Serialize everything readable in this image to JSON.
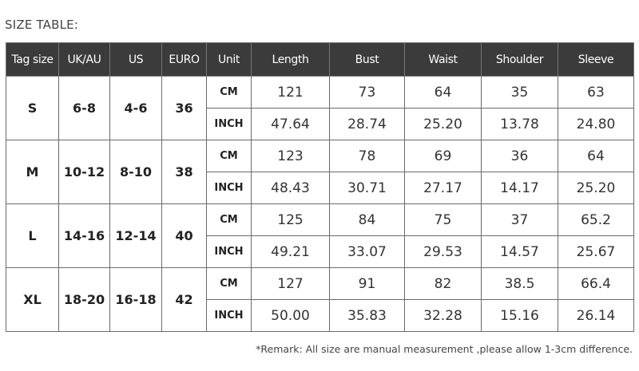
{
  "title": "SIZE TABLE:",
  "headers": [
    "Tag size",
    "UK/AU",
    "US",
    "EURO",
    "Unit",
    "Length",
    "Bust",
    "Waist",
    "Shoulder",
    "Sleeve"
  ],
  "sizes": [
    {
      "tag": "S",
      "uk_au": "6-8",
      "us": "4-6",
      "euro": "36",
      "rows": [
        {
          "unit": "CM",
          "values": [
            "121",
            "73",
            "64",
            "35",
            "63"
          ]
        },
        {
          "unit": "INCH",
          "values": [
            "47.64",
            "28.74",
            "25.20",
            "13.78",
            "24.80"
          ]
        }
      ]
    },
    {
      "tag": "M",
      "uk_au": "10-12",
      "us": "8-10",
      "euro": "38",
      "rows": [
        {
          "unit": "CM",
          "values": [
            "123",
            "78",
            "69",
            "36",
            "64"
          ]
        },
        {
          "unit": "INCH",
          "values": [
            "48.43",
            "30.71",
            "27.17",
            "14.17",
            "25.20"
          ]
        }
      ]
    },
    {
      "tag": "L",
      "uk_au": "14-16",
      "us": "12-14",
      "euro": "40",
      "rows": [
        {
          "unit": "CM",
          "values": [
            "125",
            "84",
            "75",
            "37",
            "65.2"
          ]
        },
        {
          "unit": "INCH",
          "values": [
            "49.21",
            "33.07",
            "29.53",
            "14.57",
            "25.67"
          ]
        }
      ]
    },
    {
      "tag": "XL",
      "uk_au": "18-20",
      "us": "16-18",
      "euro": "42",
      "rows": [
        {
          "unit": "CM",
          "values": [
            "127",
            "91",
            "82",
            "38.5",
            "66.4"
          ]
        },
        {
          "unit": "INCH",
          "values": [
            "50.00",
            "35.83",
            "32.28",
            "15.16",
            "26.14"
          ]
        }
      ]
    }
  ],
  "remark": "*Remark: All size are manual measurement ,please allow 1-3cm difference.",
  "colors": {
    "header_bg": "#3b3b3b",
    "header_text": "#ffffff",
    "border": "#6a6a6a"
  }
}
